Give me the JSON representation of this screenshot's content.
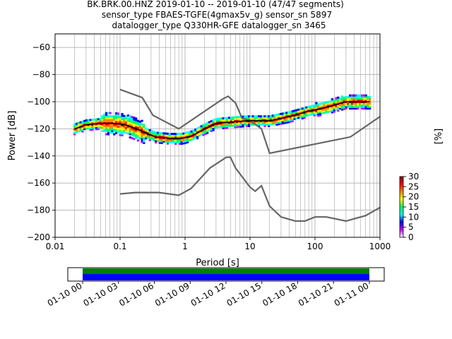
{
  "header": {
    "line1": "BK.BRK.00.HNZ   2019-01-10 -- 2019-01-10  (47/47 segments)",
    "line2": "sensor_type FBAES-TGFE(4gmax5v_g) sensor_sn 5897",
    "line3": "datalogger_type Q330HR-GFE datalogger_sn 3465"
  },
  "chart_data": [
    {
      "type": "heatmap",
      "title": "",
      "xlabel": "Period [s]",
      "ylabel": "Power [dB]",
      "x_scale": "log",
      "xlim": [
        0.01,
        1000
      ],
      "ylim": [
        -200,
        -50
      ],
      "grid": true,
      "x_ticks": [
        {
          "v": 0.01,
          "label": "0.01"
        },
        {
          "v": 0.1,
          "label": "0.1"
        },
        {
          "v": 1,
          "label": "1"
        },
        {
          "v": 10,
          "label": "10"
        },
        {
          "v": 100,
          "label": "100"
        },
        {
          "v": 1000,
          "label": "1000"
        }
      ],
      "y_ticks": [
        {
          "v": -60,
          "label": "−60"
        },
        {
          "v": -80,
          "label": "−80"
        },
        {
          "v": -100,
          "label": "−100"
        },
        {
          "v": -120,
          "label": "−120"
        },
        {
          "v": -140,
          "label": "−140"
        },
        {
          "v": -160,
          "label": "−160"
        },
        {
          "v": -180,
          "label": "−180"
        },
        {
          "v": -200,
          "label": "−200"
        }
      ],
      "noise_models": [
        {
          "points": [
            [
              0.1,
              -91
            ],
            [
              0.22,
              -97
            ],
            [
              0.32,
              -110
            ],
            [
              0.8,
              -120
            ],
            [
              3.8,
              -98
            ],
            [
              4.6,
              -96
            ],
            [
              6,
              -101
            ],
            [
              7.5,
              -112
            ],
            [
              10,
              -114
            ],
            [
              15,
              -120
            ],
            [
              20,
              -138
            ],
            [
              350,
              -126
            ],
            [
              1000,
              -111
            ]
          ]
        },
        {
          "points": [
            [
              0.1,
              -168
            ],
            [
              0.17,
              -167
            ],
            [
              0.4,
              -167
            ],
            [
              0.8,
              -169
            ],
            [
              1.24,
              -164
            ],
            [
              2.4,
              -149
            ],
            [
              4.3,
              -141
            ],
            [
              5,
              -141
            ],
            [
              6,
              -149
            ],
            [
              10,
              -163
            ],
            [
              12,
              -166
            ],
            [
              15,
              -162
            ],
            [
              20,
              -177
            ],
            [
              30,
              -185
            ],
            [
              50,
              -188
            ],
            [
              70,
              -188
            ],
            [
              100,
              -185
            ],
            [
              150,
              -185
            ],
            [
              300,
              -188
            ],
            [
              600,
              -184
            ],
            [
              1000,
              -178
            ]
          ]
        }
      ],
      "mode_curve": {
        "points": [
          [
            0.02,
            -120
          ],
          [
            0.03,
            -117
          ],
          [
            0.05,
            -116
          ],
          [
            0.08,
            -116
          ],
          [
            0.12,
            -117
          ],
          [
            0.2,
            -121
          ],
          [
            0.35,
            -126
          ],
          [
            0.6,
            -127
          ],
          [
            0.9,
            -127
          ],
          [
            1.3,
            -125
          ],
          [
            2,
            -120
          ],
          [
            3,
            -116
          ],
          [
            5,
            -115
          ],
          [
            9,
            -114
          ],
          [
            12,
            -114
          ],
          [
            20,
            -114
          ],
          [
            40,
            -111
          ],
          [
            80,
            -107
          ],
          [
            150,
            -104
          ],
          [
            300,
            -100
          ],
          [
            700,
            -100
          ]
        ]
      },
      "colorbar": {
        "label": "[%]",
        "range": [
          0,
          30
        ],
        "ticks": [
          {
            "v": 0,
            "label": "0"
          },
          {
            "v": 5,
            "label": "5"
          },
          {
            "v": 10,
            "label": "10"
          },
          {
            "v": 15,
            "label": "15"
          },
          {
            "v": 20,
            "label": "20"
          },
          {
            "v": 25,
            "label": "25"
          },
          {
            "v": 30,
            "label": "30"
          }
        ],
        "colors": [
          "#ffffff",
          "#cc00ff",
          "#0000ff",
          "#00ffff",
          "#00ff66",
          "#ffff00",
          "#ff8800",
          "#ff0000",
          "#880000"
        ]
      }
    },
    {
      "type": "bar",
      "title": "",
      "xlabel": "",
      "x_ticks": [
        "01-10 00",
        "01-10 03",
        "01-10 06",
        "01-10 09",
        "01-10 12",
        "01-10 15",
        "01-10 18",
        "01-10 21",
        "01-11 00"
      ],
      "tracks": [
        {
          "color": "#008000",
          "start": "01-10 00",
          "end": "01-11 00"
        },
        {
          "color": "#0000ff",
          "start": "01-10 00",
          "end": "01-11 00"
        }
      ]
    }
  ]
}
